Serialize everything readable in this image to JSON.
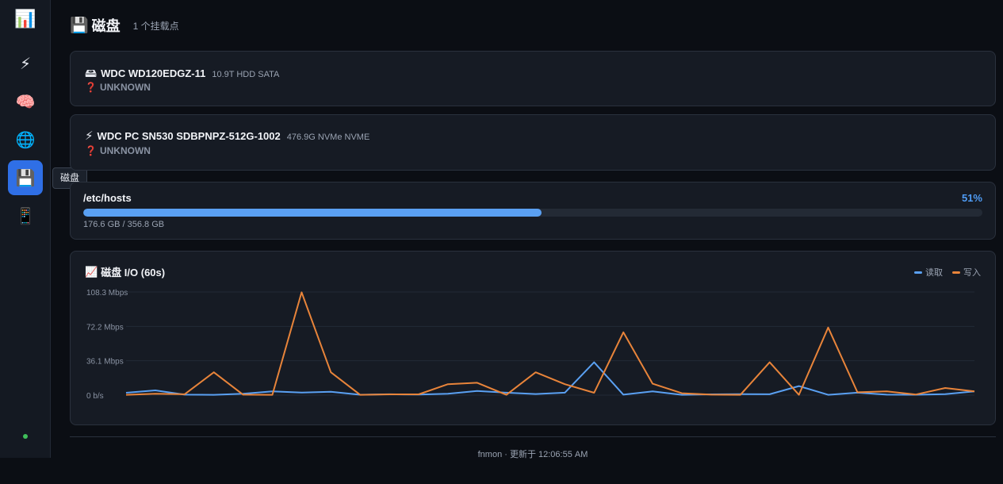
{
  "sidebar": {
    "logo_icon": "📊",
    "items": [
      {
        "name": "cpu",
        "icon": "⚡",
        "icon_name": "lightning-icon"
      },
      {
        "name": "memory",
        "icon": "🧠",
        "icon_name": "brain-icon"
      },
      {
        "name": "network",
        "icon": "🌐",
        "icon_name": "globe-icon"
      },
      {
        "name": "disk",
        "icon": "💾",
        "icon_name": "floppy-disk-icon",
        "active": true
      },
      {
        "name": "device",
        "icon": "📱",
        "icon_name": "phone-icon"
      }
    ],
    "tooltip": "磁盘",
    "status_color": "#3fbf5a"
  },
  "header": {
    "icon": "💾",
    "title": "磁盘",
    "subtitle": "1 个挂载点"
  },
  "disks": [
    {
      "icon": "🖴",
      "icon_name": "hard-drive-icon",
      "name": "WDC WD120EDGZ-11",
      "meta": "10.9T HDD SATA",
      "status_icon": "❓",
      "status": "UNKNOWN"
    },
    {
      "icon": "⚡",
      "icon_name": "lightning-icon",
      "name": "WDC PC SN530 SDBPNPZ-512G-1002",
      "meta": "476.9G NVMe NVME",
      "status_icon": "❓",
      "status": "UNKNOWN"
    }
  ],
  "mount": {
    "path": "/etc/hosts",
    "percent_label": "51%",
    "percent": 51,
    "usage": "176.6 GB / 356.8 GB"
  },
  "io": {
    "icon": "📈",
    "title": "磁盘 I/O (60s)",
    "legend": [
      {
        "label": "读取",
        "color": "#5aa0f2"
      },
      {
        "label": "写入",
        "color": "#e8843a"
      }
    ]
  },
  "chart_data": {
    "type": "line",
    "title": "磁盘 I/O (60s)",
    "y_tick_labels": [
      "108.3 Mbps",
      "72.2 Mbps",
      "36.1 Mbps",
      "0 b/s"
    ],
    "y_ticks": [
      108.3,
      72.2,
      36.1,
      0
    ],
    "ylim": [
      0,
      108.3
    ],
    "grid": true,
    "legend_placement": "top-right",
    "series": [
      {
        "name": "读取",
        "color": "#5aa0f2",
        "values": [
          2.5,
          5,
          0.5,
          0.3,
          1.5,
          4,
          2.7,
          3.6,
          0.4,
          0.9,
          0.6,
          1.5,
          4.3,
          2.6,
          1.2,
          2.6,
          34.5,
          0.5,
          4,
          0.3,
          0.8,
          1.1,
          0.9,
          9.5,
          0.3,
          2.6,
          0.5,
          0.4,
          1,
          4
        ]
      },
      {
        "name": "写入",
        "color": "#e8843a",
        "values": [
          0.3,
          1.5,
          0.9,
          24,
          0.5,
          0.3,
          108,
          24,
          0.3,
          0.8,
          0.8,
          11.5,
          13,
          0.3,
          24,
          11.5,
          2.5,
          66,
          12,
          2,
          0.5,
          0.3,
          34.5,
          0.3,
          71,
          3,
          4,
          0.7,
          7.5,
          4
        ]
      }
    ]
  },
  "footer": "fnmon · 更新于 12:06:55 AM"
}
